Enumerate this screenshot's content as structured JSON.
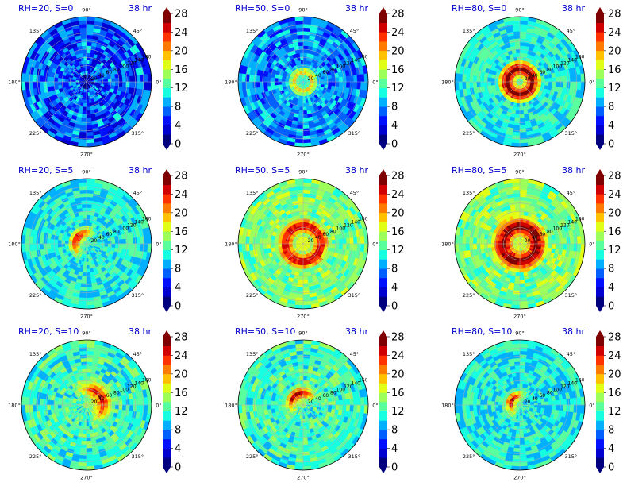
{
  "chart_data": {
    "type": "heatmap",
    "projection": "polar",
    "colormap": "jet",
    "color_levels": [
      0,
      2,
      4,
      6,
      8,
      10,
      12,
      14,
      16,
      18,
      20,
      22,
      24,
      26,
      28
    ],
    "colorbar_ticks": [
      "0",
      "4",
      "8",
      "12",
      "16",
      "20",
      "24",
      "28"
    ],
    "angle_ticks": [
      "0°",
      "45°",
      "90°",
      "135°",
      "180°",
      "225°",
      "270°",
      "315°"
    ],
    "radius_ticks": [
      "20",
      "40",
      "60",
      "80",
      "100",
      "120",
      "140",
      "160"
    ],
    "time_label": "38 hr",
    "panels": [
      {
        "title": "RH=20, S=0",
        "time": "38 hr",
        "background": 6.5,
        "core_inner": 0,
        "core_outer": 0,
        "peak": 9,
        "shift_angle": 0,
        "pattern": "mottled"
      },
      {
        "title": "RH=50, S=0",
        "time": "38 hr",
        "background": 8,
        "core_inner": 8,
        "core_outer": 40,
        "peak": 19,
        "shift_angle": 90,
        "pattern": "ring"
      },
      {
        "title": "RH=80, S=0",
        "time": "38 hr",
        "background": 11,
        "core_inner": 8,
        "core_outer": 55,
        "peak": 28,
        "shift_angle": 0,
        "pattern": "ring"
      },
      {
        "title": "RH=20, S=5",
        "time": "38 hr",
        "background": 11,
        "core_inner": 10,
        "core_outer": 45,
        "peak": 27,
        "shift_angle": 150,
        "pattern": "offset"
      },
      {
        "title": "RH=50, S=5",
        "time": "38 hr",
        "background": 14,
        "core_inner": 18,
        "core_outer": 70,
        "peak": 26,
        "shift_angle": 170,
        "pattern": "ring"
      },
      {
        "title": "RH=80, S=5",
        "time": "38 hr",
        "background": 14,
        "core_inner": 10,
        "core_outer": 75,
        "peak": 28,
        "shift_angle": 180,
        "pattern": "ring"
      },
      {
        "title": "RH=20, S=10",
        "time": "38 hr",
        "background": 12,
        "core_inner": 10,
        "core_outer": 70,
        "peak": 25,
        "shift_angle": 30,
        "pattern": "offset"
      },
      {
        "title": "RH=50, S=10",
        "time": "38 hr",
        "background": 12,
        "core_inner": 10,
        "core_outer": 50,
        "peak": 27,
        "shift_angle": 120,
        "pattern": "offset"
      },
      {
        "title": "RH=80, S=10",
        "time": "38 hr",
        "background": 11,
        "core_inner": 6,
        "core_outer": 40,
        "peak": 26,
        "shift_angle": 150,
        "pattern": "offset"
      }
    ]
  }
}
